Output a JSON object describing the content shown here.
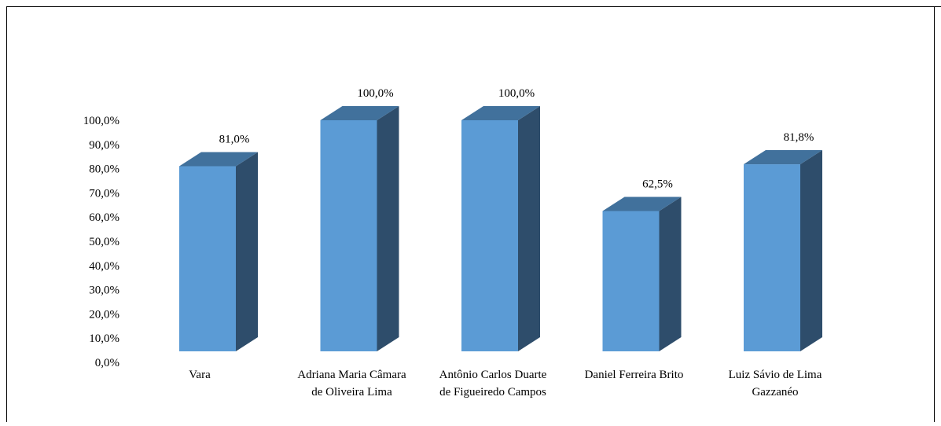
{
  "chart_data": {
    "type": "bar",
    "title": "",
    "xlabel": "",
    "ylabel": "",
    "ylim": [
      0,
      100
    ],
    "yticks": [
      0,
      10,
      20,
      30,
      40,
      50,
      60,
      70,
      80,
      90,
      100
    ],
    "ytick_labels": [
      "0,0%",
      "10,0%",
      "20,0%",
      "30,0%",
      "40,0%",
      "50,0%",
      "60,0%",
      "70,0%",
      "80,0%",
      "90,0%",
      "100,0%"
    ],
    "categories": [
      [
        "Vara"
      ],
      [
        "Adriana Maria Câmara",
        "de Oliveira Lima"
      ],
      [
        "Antônio Carlos Duarte",
        "de Figueiredo Campos"
      ],
      [
        "Daniel Ferreira Brito"
      ],
      [
        "Luiz Sávio de Lima",
        "Gazzanéo"
      ]
    ],
    "values": [
      81.0,
      100.0,
      100.0,
      62.5,
      81.8
    ],
    "data_labels": [
      "81,0%",
      "100,0%",
      "100,0%",
      "62,5%",
      "81,8%"
    ],
    "three_d": true,
    "grid": false,
    "legend": "none",
    "colors": {
      "front": "#5B9BD5",
      "top": "#41719C",
      "side": "#2E4D6B",
      "border": "#000000"
    }
  }
}
